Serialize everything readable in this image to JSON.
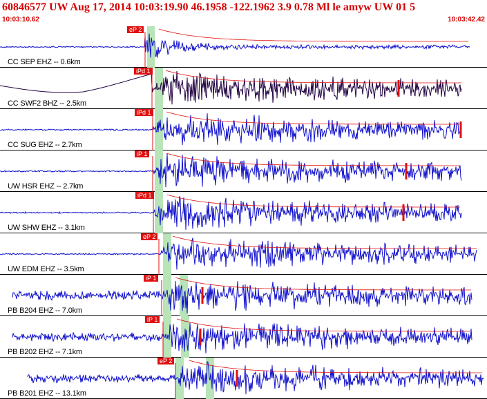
{
  "header": {
    "title": "60846577 UW Aug 17, 2014 10:03:19.90    46.1958 -122.1962  3.9 0.78 Ml le amyw UW 01    5",
    "time_start": "10:03:10.62",
    "time_end": "10:03:42.42"
  },
  "colors": {
    "header_text": "#d40000",
    "trace": "#1010cc",
    "trace_dark": "#200040",
    "pick": "#e01010",
    "window": "#b8e4b8",
    "separator": "#000000"
  },
  "channels": [
    {
      "label": "CC SEP EHZ -- 0.6km",
      "pick_label": "eP 2",
      "trace_color": "trace"
    },
    {
      "label": "CC SWF2 BHZ -- 2.5km",
      "pick_label": "iPd 1",
      "trace_color": "trace_dark"
    },
    {
      "label": "CC SUG EHZ -- 2.7km",
      "pick_label": "iPd 1",
      "trace_color": "trace"
    },
    {
      "label": "UW HSR EHZ -- 2.7km",
      "pick_label": "iP 1",
      "trace_color": "trace"
    },
    {
      "label": "UW SHW EHZ -- 3.1km",
      "pick_label": "iPd 1",
      "trace_color": "trace"
    },
    {
      "label": "UW EDM EHZ -- 3.5km",
      "pick_label": "eP 2",
      "trace_color": "trace"
    },
    {
      "label": "PB B204 EHZ -- 7.0km",
      "pick_label": "iP 1",
      "trace_color": "trace"
    },
    {
      "label": "PB B202 EHZ -- 7.1km",
      "pick_label": "iP 1",
      "trace_color": "trace"
    },
    {
      "label": "PB B201 EHZ -- 13.1km",
      "pick_label": "eP 2",
      "trace_color": "trace"
    }
  ]
}
